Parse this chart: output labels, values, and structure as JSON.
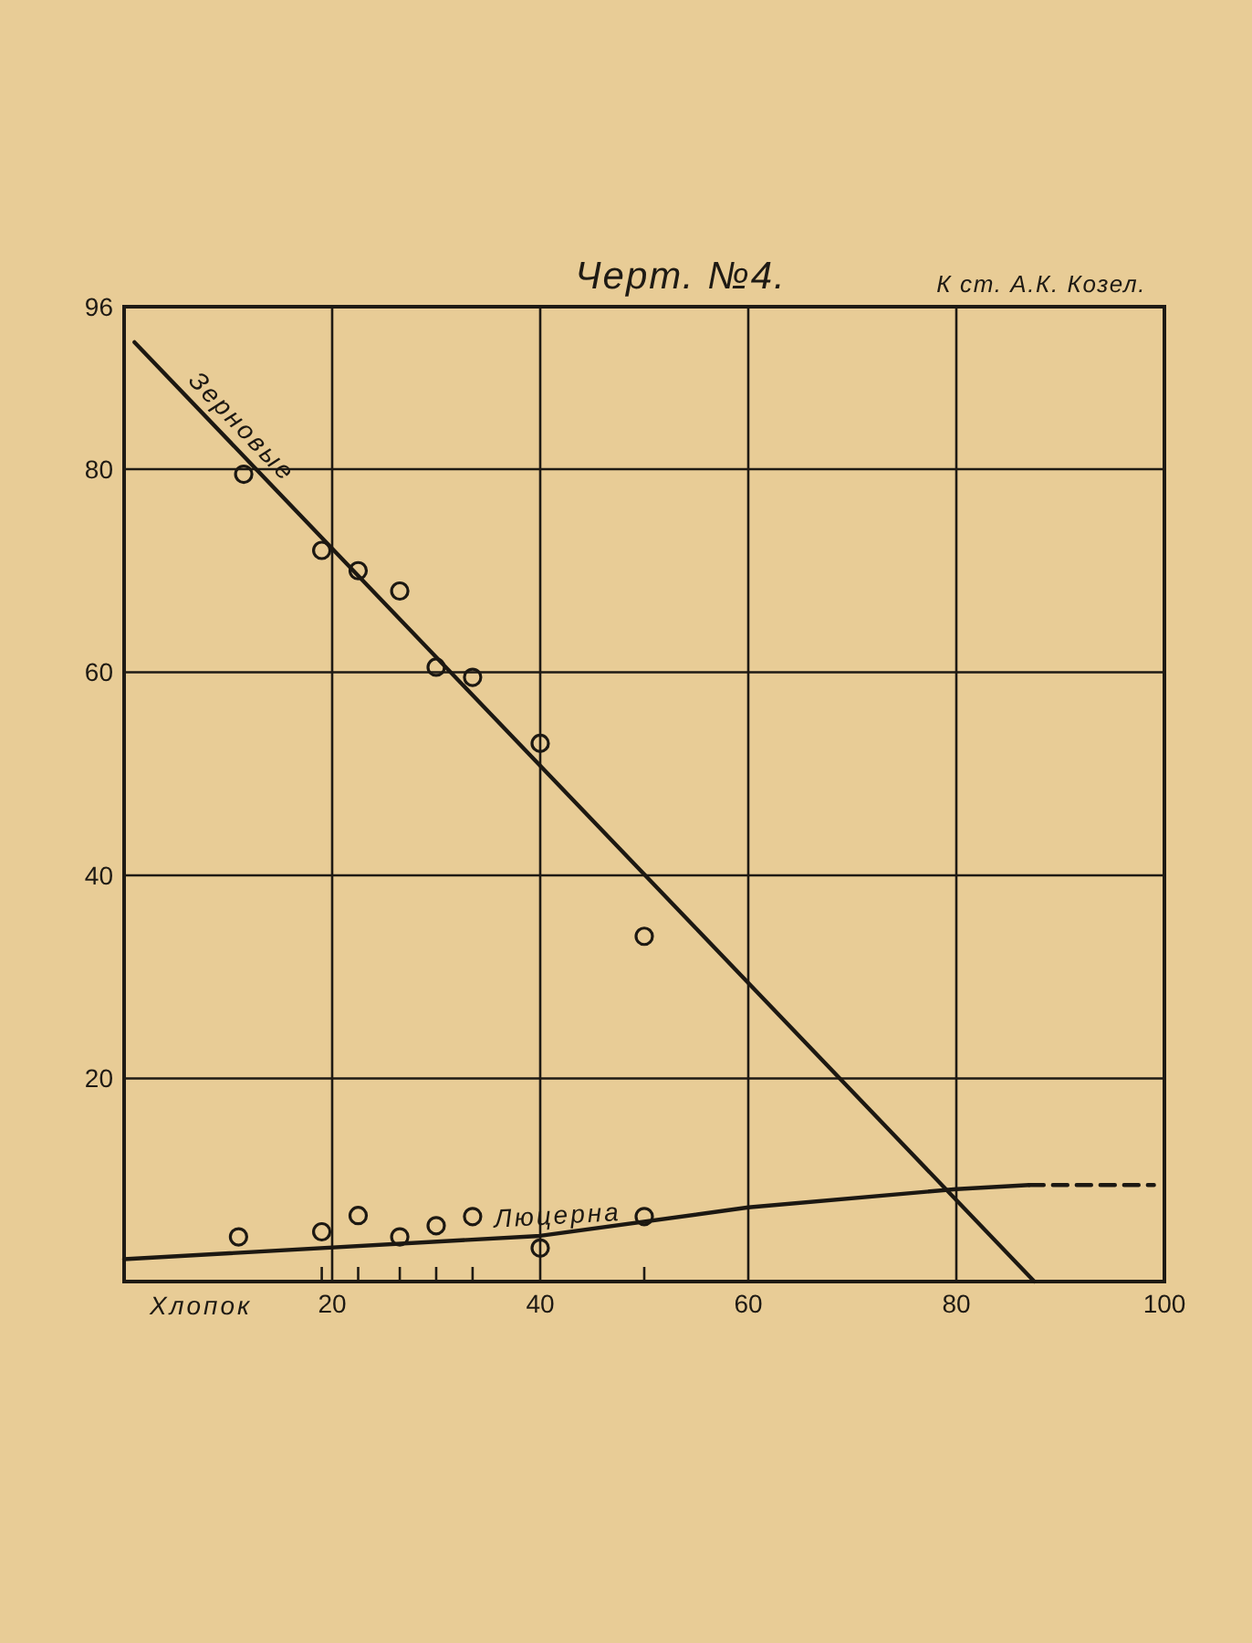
{
  "chart_data": {
    "type": "scatter",
    "title": "Черт. №4.",
    "annotations": [
      "К ст. А.К. Козел."
    ],
    "xlabel": "Хлопок",
    "xlim": [
      0,
      100
    ],
    "xticks": [
      {
        "value": 19,
        "label": null
      },
      20,
      {
        "value": 22.5,
        "label": null
      },
      {
        "value": 26.5,
        "label": null
      },
      {
        "value": 30,
        "label": null
      },
      {
        "value": 33.5,
        "label": null
      },
      40,
      {
        "value": 50,
        "label": null
      },
      60,
      80,
      100
    ],
    "ylim": [
      0,
      96
    ],
    "yticks": [
      20,
      40,
      60,
      80,
      96
    ],
    "grid": true,
    "marker": "circle",
    "series": [
      {
        "color": "#1c1812",
        "x": [
          11.5,
          19,
          22.5,
          26.5,
          30,
          33.5,
          40,
          50
        ],
        "values": [
          79.5,
          72,
          70,
          68,
          60.5,
          59.5,
          53,
          34
        ]
      },
      {
        "type": "line",
        "name": "Зерновые",
        "color": "#1c1812",
        "x": [
          1,
          87.5
        ],
        "values": [
          92.5,
          0
        ],
        "marker": "none"
      },
      {
        "color": "#1c1812",
        "x": [
          11,
          19,
          22.5,
          26.5,
          30,
          33.5,
          40,
          50
        ],
        "values": [
          4.4,
          4.9,
          6.5,
          4.4,
          5.5,
          6.4,
          3.3,
          6.4
        ]
      },
      {
        "type": "line",
        "name": "Люцерна",
        "color": "#1c1812",
        "x": [
          0,
          40,
          60,
          80,
          87
        ],
        "values": [
          2.2,
          4.5,
          7.3,
          9.1,
          9.5
        ],
        "marker": "none"
      },
      {
        "type": "line",
        "color": "#1c1812",
        "x": [
          87,
          99
        ],
        "values": [
          9.5,
          9.5
        ],
        "line_style": "dashed",
        "marker": "none"
      }
    ]
  }
}
